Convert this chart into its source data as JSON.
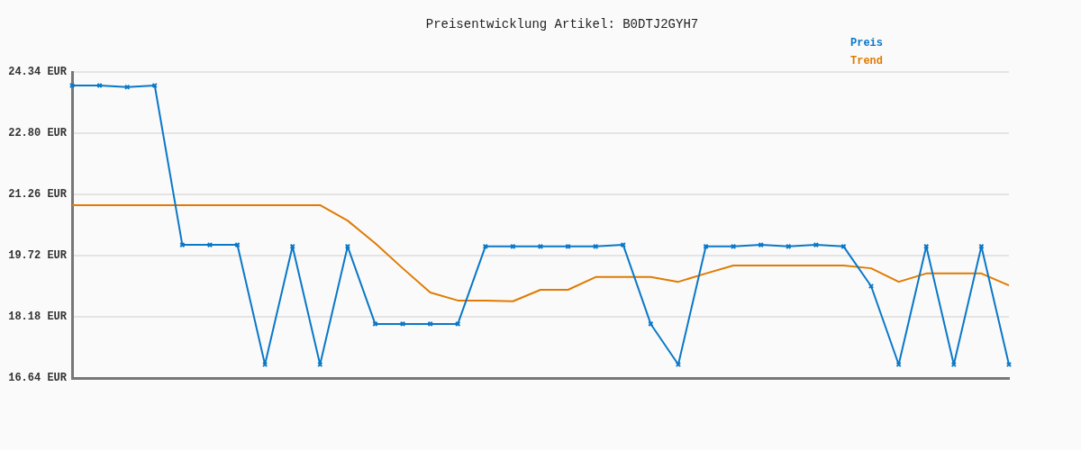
{
  "chart_data": {
    "type": "line",
    "title": "Preisentwicklung Artikel: B0DTJ2GYH7",
    "categories": [
      null,
      null,
      null,
      null,
      null,
      null,
      null,
      null,
      null,
      null,
      null,
      null,
      null,
      null,
      null,
      null,
      null,
      null,
      null,
      null,
      null,
      null,
      null,
      null,
      null,
      null,
      null,
      null,
      null,
      null,
      null,
      null,
      null,
      null,
      null
    ],
    "series": [
      {
        "name": "Preis",
        "color": "#0a78c8",
        "marker": "cross",
        "values": [
          24.0,
          24.0,
          23.96,
          24.0,
          19.99,
          19.99,
          19.99,
          16.98,
          19.95,
          16.98,
          19.95,
          18.0,
          18.0,
          18.0,
          18.0,
          19.95,
          19.95,
          19.95,
          19.95,
          19.95,
          19.99,
          18.0,
          16.98,
          19.95,
          19.95,
          19.99,
          19.95,
          19.99,
          19.95,
          18.95,
          16.98,
          19.95,
          16.98,
          19.95,
          16.98
        ]
      },
      {
        "name": "Trend",
        "color": "#e07b00",
        "marker": "none",
        "values": [
          20.99,
          20.99,
          20.99,
          20.99,
          20.99,
          20.99,
          20.99,
          20.99,
          20.99,
          20.99,
          20.6,
          20.03,
          19.4,
          18.79,
          18.59,
          18.59,
          18.57,
          18.86,
          18.86,
          19.18,
          19.18,
          19.18,
          19.06,
          19.27,
          19.47,
          19.47,
          19.47,
          19.47,
          19.47,
          19.4,
          19.06,
          19.27,
          19.27,
          19.27,
          18.97
        ]
      }
    ],
    "ylim": [
      16.64,
      24.34
    ],
    "yticks": [
      {
        "value": 16.64,
        "label": "16.64 EUR"
      },
      {
        "value": 18.18,
        "label": "18.18 EUR"
      },
      {
        "value": 19.72,
        "label": "19.72 EUR"
      },
      {
        "value": 21.26,
        "label": "21.26 EUR"
      },
      {
        "value": 22.8,
        "label": "22.80 EUR"
      },
      {
        "value": 24.34,
        "label": "24.34 EUR"
      }
    ],
    "grid": "y",
    "legend": "top right",
    "line_style": "solid"
  }
}
